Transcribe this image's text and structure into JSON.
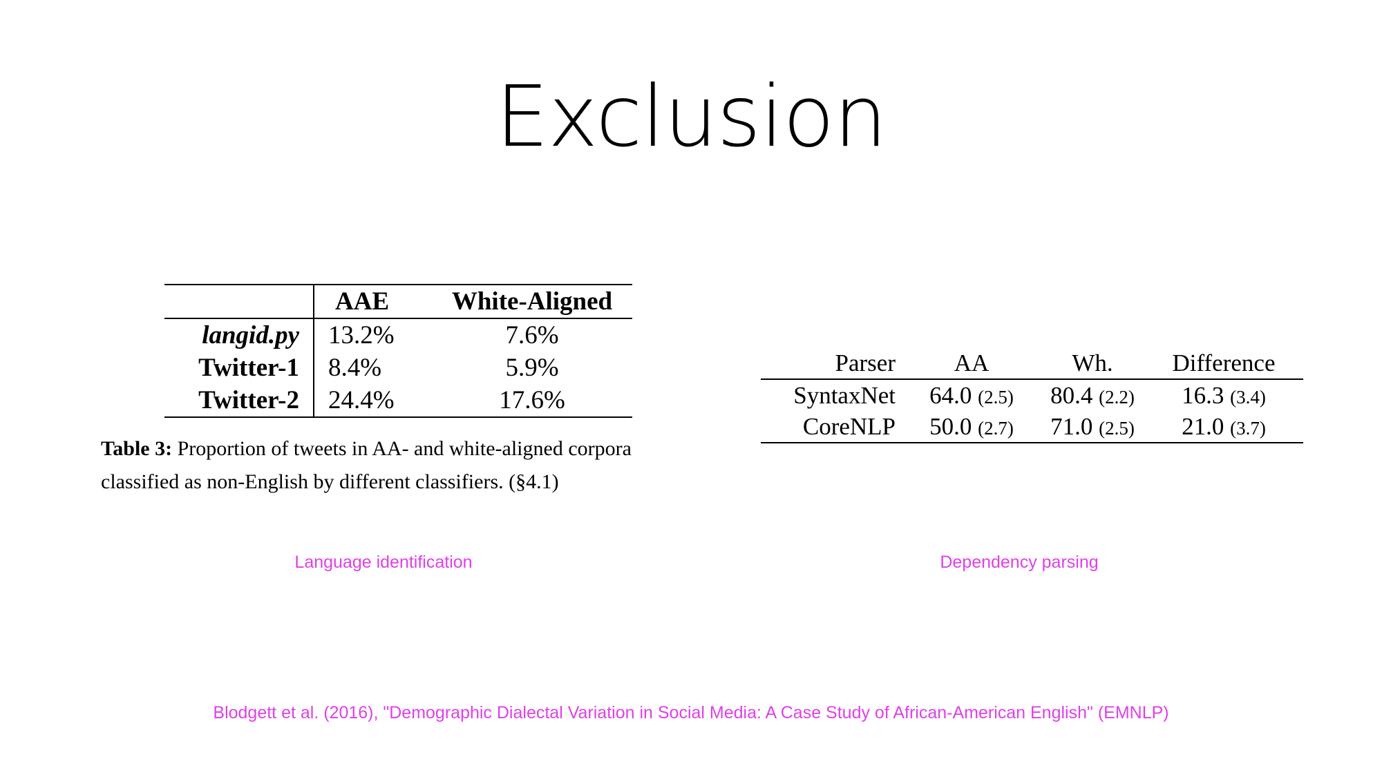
{
  "slide": {
    "title": "Exclusion"
  },
  "table_left": {
    "headers": [
      "",
      "AAE",
      "White-Aligned"
    ],
    "rows": [
      {
        "name": "langid.py",
        "aae": "13.2%",
        "white": "7.6%"
      },
      {
        "name": "Twitter-1",
        "aae": "8.4%",
        "white": "5.9%"
      },
      {
        "name": "Twitter-2",
        "aae": "24.4%",
        "white": "17.6%"
      }
    ],
    "caption_label": "Table 3:",
    "caption_text": " Proportion of tweets in AA- and white-aligned corpora classified as non-English by different classifiers. (§4.1)"
  },
  "table_right": {
    "headers": [
      "Parser",
      "AA",
      "Wh.",
      "Difference"
    ],
    "rows": [
      {
        "parser": "SyntaxNet",
        "aa": "64.0",
        "aa_se": "(2.5)",
        "wh": "80.4",
        "wh_se": "(2.2)",
        "diff": "16.3",
        "diff_se": "(3.4)"
      },
      {
        "parser": "CoreNLP",
        "aa": "50.0",
        "aa_se": "(2.7)",
        "wh": "71.0",
        "wh_se": "(2.5)",
        "diff": "21.0",
        "diff_se": "(3.7)"
      }
    ]
  },
  "labels": {
    "left": "Language identification",
    "right": "Dependency parsing",
    "citation": "Blodgett et al. (2016), \"Demographic Dialectal Variation in Social Media: A Case Study of African-American English\" (EMNLP)"
  },
  "colors": {
    "accent_pink": "#e040e8",
    "text": "#000000",
    "background": "#ffffff"
  }
}
